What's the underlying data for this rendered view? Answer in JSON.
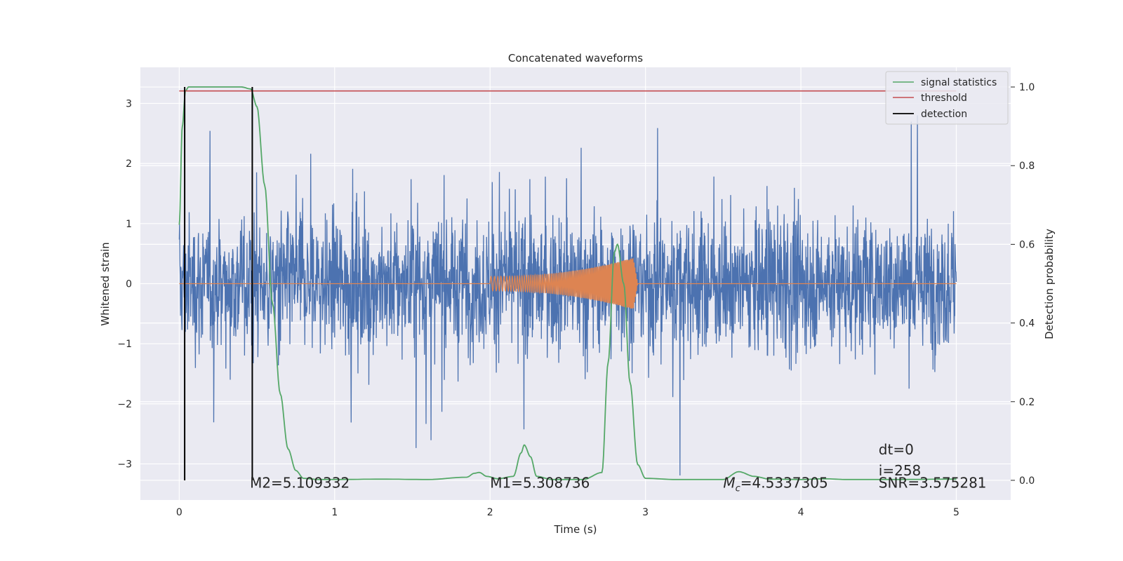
{
  "chart_data": {
    "type": "line",
    "title": "Concatenated waveforms",
    "xlabel": "Time (s)",
    "ylabel": "Whitened strain",
    "ylabel_right": "Detection probability",
    "xlim": [
      -0.25,
      5.35
    ],
    "ylim": [
      -3.6,
      3.6
    ],
    "ylim_right": [
      -0.05,
      1.05
    ],
    "xticks": [
      0,
      1,
      2,
      3,
      4,
      5
    ],
    "yticks": [
      -3,
      -2,
      -1,
      0,
      1,
      2,
      3
    ],
    "yticks_right": [
      0.0,
      0.2,
      0.4,
      0.6,
      0.8,
      1.0
    ],
    "xtick_labels": [
      "0",
      "1",
      "2",
      "3",
      "4",
      "5"
    ],
    "ytick_labels": [
      "−3",
      "−2",
      "−1",
      "0",
      "1",
      "2",
      "3"
    ],
    "ytick_right_labels": [
      "0.0",
      "0.2",
      "0.4",
      "0.6",
      "0.8",
      "1.0"
    ],
    "grid": true,
    "legend_position": "top-right",
    "colors": {
      "noise": "#4c72b0",
      "waveform": "#dd8452",
      "signal_statistics": "#55a868",
      "threshold": "#c44e52",
      "detection": "#000000",
      "background": "#eaeaf2",
      "grid": "#ffffff"
    },
    "series": [
      {
        "name": "signal statistics",
        "axis": "right",
        "x": [
          0.0,
          0.02,
          0.04,
          0.06,
          0.1,
          0.2,
          0.3,
          0.4,
          0.46,
          0.5,
          0.55,
          0.6,
          0.65,
          0.7,
          0.75,
          0.8,
          0.9,
          1.0,
          1.3,
          1.6,
          1.85,
          1.9,
          1.93,
          1.98,
          2.05,
          2.15,
          2.2,
          2.22,
          2.26,
          2.3,
          2.4,
          2.6,
          2.72,
          2.76,
          2.8,
          2.82,
          2.86,
          2.9,
          2.95,
          3.0,
          3.2,
          3.5,
          3.6,
          3.7,
          3.8,
          4.0,
          4.15,
          4.3,
          4.6,
          5.0
        ],
        "y": [
          0.65,
          0.9,
          0.99,
          1.0,
          1.0,
          1.0,
          1.0,
          1.0,
          0.995,
          0.95,
          0.75,
          0.45,
          0.22,
          0.08,
          0.025,
          0.005,
          0.002,
          0.002,
          0.003,
          0.002,
          0.008,
          0.018,
          0.02,
          0.01,
          0.004,
          0.01,
          0.07,
          0.09,
          0.06,
          0.01,
          0.002,
          0.002,
          0.02,
          0.3,
          0.58,
          0.6,
          0.5,
          0.25,
          0.04,
          0.005,
          0.002,
          0.002,
          0.022,
          0.01,
          0.003,
          0.002,
          0.004,
          0.002,
          0.002,
          0.003
        ]
      },
      {
        "name": "threshold",
        "axis": "right",
        "x": [
          0.0,
          5.0
        ],
        "y": [
          0.99,
          0.99
        ]
      },
      {
        "name": "detection",
        "axis": "right",
        "x": [
          0.035,
          0.47
        ],
        "y": [
          [
            0.0,
            1.0
          ],
          [
            0.0,
            1.0
          ]
        ]
      }
    ],
    "noise_series": {
      "axis": "left",
      "x_range": [
        0.0,
        5.0
      ],
      "typical_amplitude": [
        -1.0,
        1.0
      ],
      "peak_amplitude": [
        -3.5,
        3.3
      ]
    },
    "waveform_series": {
      "axis": "left",
      "x_range": [
        2.0,
        2.95
      ],
      "envelope_start": 0.12,
      "envelope_end": 0.45
    },
    "annotations": [
      {
        "text": "M2=5.109332",
        "x": 0.5,
        "y": -3.3
      },
      {
        "text": "M1=5.308736",
        "x": 2.0,
        "y": -3.3
      },
      {
        "text": "=4.5337305",
        "math_prefix": "M",
        "math_sub": "c",
        "x": 3.5,
        "y": -3.3
      },
      {
        "text": "dt=0",
        "x": 4.5,
        "y": -2.75
      },
      {
        "text": "i=258",
        "x": 4.5,
        "y": -3.1
      },
      {
        "text": "SNR=3.575281",
        "x": 4.5,
        "y": -3.3
      }
    ],
    "legend": [
      "signal statistics",
      "threshold",
      "detection"
    ]
  }
}
